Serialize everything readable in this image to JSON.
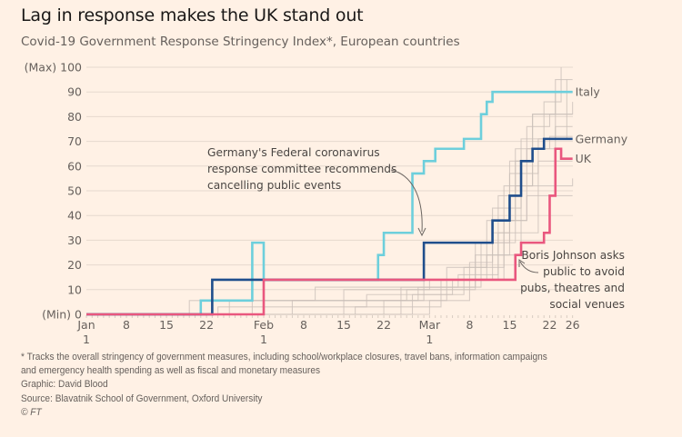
{
  "header": {
    "title": "Lag in response makes the UK stand out",
    "subtitle": "Covid-19 Government Response Stringency Index*, European countries"
  },
  "chart_data": {
    "type": "line",
    "step": true,
    "title": "Lag in response makes the UK stand out",
    "subtitle": "Covid-19 Government Response Stringency Index*, European countries",
    "xlabel": "",
    "ylabel": "",
    "x_range": [
      "2020-01-01",
      "2020-03-26"
    ],
    "ylim": [
      0,
      100
    ],
    "grid": true,
    "y_ticks": [
      {
        "value": 0,
        "label": "(Min) 0"
      },
      {
        "value": 10,
        "label": "10"
      },
      {
        "value": 20,
        "label": "20"
      },
      {
        "value": 30,
        "label": "30"
      },
      {
        "value": 40,
        "label": "40"
      },
      {
        "value": 50,
        "label": "50"
      },
      {
        "value": 60,
        "label": "60"
      },
      {
        "value": 70,
        "label": "70"
      },
      {
        "value": 80,
        "label": "80"
      },
      {
        "value": 90,
        "label": "90"
      },
      {
        "value": 100,
        "label": "(Max) 100"
      }
    ],
    "x_ticks": [
      {
        "day": 0,
        "label": "Jan",
        "sublabel": "1"
      },
      {
        "day": 7,
        "label": "8",
        "sublabel": ""
      },
      {
        "day": 14,
        "label": "15",
        "sublabel": ""
      },
      {
        "day": 21,
        "label": "22",
        "sublabel": ""
      },
      {
        "day": 31,
        "label": "Feb",
        "sublabel": "1"
      },
      {
        "day": 38,
        "label": "8",
        "sublabel": ""
      },
      {
        "day": 45,
        "label": "15",
        "sublabel": ""
      },
      {
        "day": 52,
        "label": "22",
        "sublabel": ""
      },
      {
        "day": 60,
        "label": "Mar",
        "sublabel": "1"
      },
      {
        "day": 67,
        "label": "8",
        "sublabel": ""
      },
      {
        "day": 74,
        "label": "15",
        "sublabel": ""
      },
      {
        "day": 81,
        "label": "22",
        "sublabel": ""
      },
      {
        "day": 85,
        "label": "26",
        "sublabel": ""
      }
    ],
    "x_unit": "days since 2020-01-01",
    "series": [
      {
        "name": "Italy",
        "color": "#6dcfdc",
        "highlight": true,
        "steps": [
          [
            0,
            0
          ],
          [
            20,
            5.6
          ],
          [
            22,
            5.6
          ],
          [
            29,
            29
          ],
          [
            31,
            14
          ],
          [
            51,
            24
          ],
          [
            52,
            33
          ],
          [
            57,
            57
          ],
          [
            59,
            62
          ],
          [
            61,
            67
          ],
          [
            66,
            71
          ],
          [
            69,
            81
          ],
          [
            70,
            86
          ],
          [
            71,
            90
          ],
          [
            85,
            90
          ]
        ]
      },
      {
        "name": "Germany",
        "color": "#1f4e8c",
        "highlight": true,
        "steps": [
          [
            0,
            0
          ],
          [
            22,
            14
          ],
          [
            59,
            29
          ],
          [
            71,
            38
          ],
          [
            74,
            48
          ],
          [
            76,
            62
          ],
          [
            78,
            67
          ],
          [
            80,
            71
          ],
          [
            85,
            71
          ]
        ]
      },
      {
        "name": "UK",
        "color": "#e9577e",
        "highlight": true,
        "steps": [
          [
            0,
            0
          ],
          [
            31,
            14
          ],
          [
            75,
            24
          ],
          [
            76,
            29
          ],
          [
            80,
            33
          ],
          [
            81,
            48
          ],
          [
            82,
            67
          ],
          [
            83,
            63
          ],
          [
            85,
            63
          ]
        ]
      },
      {
        "name": "Other European country",
        "color": "#c9bfb8",
        "highlight": false,
        "steps": [
          [
            0,
            0
          ],
          [
            18,
            5.6
          ],
          [
            31,
            5.6
          ],
          [
            59,
            14
          ],
          [
            70,
            38
          ],
          [
            75,
            62
          ],
          [
            78,
            81
          ],
          [
            85,
            86
          ]
        ]
      },
      {
        "name": "Other European country",
        "color": "#c9bfb8",
        "highlight": false,
        "steps": [
          [
            0,
            0
          ],
          [
            29,
            5.6
          ],
          [
            40,
            11
          ],
          [
            62,
            14
          ],
          [
            72,
            33
          ],
          [
            76,
            52
          ],
          [
            79,
            71
          ],
          [
            84,
            95
          ]
        ]
      },
      {
        "name": "Other European country",
        "color": "#c9bfb8",
        "highlight": false,
        "steps": [
          [
            0,
            0
          ],
          [
            36,
            5.6
          ],
          [
            56,
            10
          ],
          [
            68,
            24
          ],
          [
            73,
            52
          ],
          [
            78,
            67
          ],
          [
            82,
            90
          ],
          [
            85,
            90
          ]
        ]
      },
      {
        "name": "Other European country",
        "color": "#c9bfb8",
        "highlight": false,
        "steps": [
          [
            0,
            0
          ],
          [
            45,
            10
          ],
          [
            60,
            14
          ],
          [
            71,
            43
          ],
          [
            74,
            57
          ],
          [
            77,
            76
          ],
          [
            81,
            81
          ],
          [
            85,
            81
          ]
        ]
      },
      {
        "name": "Other European country",
        "color": "#c9bfb8",
        "highlight": false,
        "steps": [
          [
            0,
            0
          ],
          [
            25,
            5.6
          ],
          [
            58,
            11
          ],
          [
            69,
            29
          ],
          [
            72,
            48
          ],
          [
            75,
            67
          ],
          [
            80,
            86
          ],
          [
            83,
            100
          ]
        ]
      },
      {
        "name": "Other European country",
        "color": "#c9bfb8",
        "highlight": false,
        "steps": [
          [
            0,
            0
          ],
          [
            23,
            3
          ],
          [
            49,
            8
          ],
          [
            66,
            19
          ],
          [
            73,
            38
          ],
          [
            77,
            57
          ],
          [
            79,
            62
          ],
          [
            85,
            62
          ]
        ]
      },
      {
        "name": "Other European country",
        "color": "#c9bfb8",
        "highlight": false,
        "steps": [
          [
            0,
            0
          ],
          [
            52,
            5.6
          ],
          [
            63,
            19
          ],
          [
            70,
            24
          ],
          [
            74,
            43
          ],
          [
            76,
            71
          ],
          [
            82,
            76
          ],
          [
            85,
            76
          ]
        ]
      },
      {
        "name": "Other European country",
        "color": "#c9bfb8",
        "highlight": false,
        "steps": [
          [
            0,
            0
          ],
          [
            55,
            11
          ],
          [
            65,
            16
          ],
          [
            72,
            29
          ],
          [
            75,
            52
          ],
          [
            78,
            81
          ],
          [
            82,
            95
          ],
          [
            85,
            95
          ]
        ]
      },
      {
        "name": "Other European country",
        "color": "#c9bfb8",
        "highlight": false,
        "steps": [
          [
            0,
            0
          ],
          [
            60,
            5.6
          ],
          [
            67,
            21
          ],
          [
            71,
            33
          ],
          [
            74,
            62
          ],
          [
            77,
            67
          ],
          [
            81,
            72
          ],
          [
            85,
            72
          ]
        ]
      },
      {
        "name": "Other European country",
        "color": "#c9bfb8",
        "highlight": false,
        "steps": [
          [
            0,
            0
          ],
          [
            57,
            8
          ],
          [
            64,
            14
          ],
          [
            73,
            24
          ],
          [
            76,
            33
          ],
          [
            79,
            52
          ],
          [
            85,
            55
          ]
        ]
      },
      {
        "name": "Other European country",
        "color": "#c9bfb8",
        "highlight": false,
        "steps": [
          [
            0,
            0
          ],
          [
            47,
            3
          ],
          [
            62,
            11
          ],
          [
            68,
            29
          ],
          [
            74,
            38
          ],
          [
            77,
            48
          ],
          [
            85,
            48
          ]
        ]
      }
    ],
    "annotations": [
      {
        "text": [
          "Germany's Federal coronavirus",
          "response committee recommends",
          "cancelling public events"
        ],
        "target": {
          "day": 59,
          "value": 29
        },
        "series": "Germany"
      },
      {
        "text": [
          "Boris Johnson asks",
          "public to avoid",
          "pubs, theatres and",
          "social venues"
        ],
        "target": {
          "day": 75,
          "value": 24
        },
        "series": "UK"
      }
    ]
  },
  "footer": {
    "note": "* Tracks the overall stringency of government measures, including school/workplace closures, travel bans, information campaigns",
    "note_cont": "and emergency health spending as well as fiscal and monetary measures",
    "graphic": "Graphic: David Blood",
    "source": "Source: Blavatnik School of Government, Oxford University",
    "copyright": "© FT"
  }
}
